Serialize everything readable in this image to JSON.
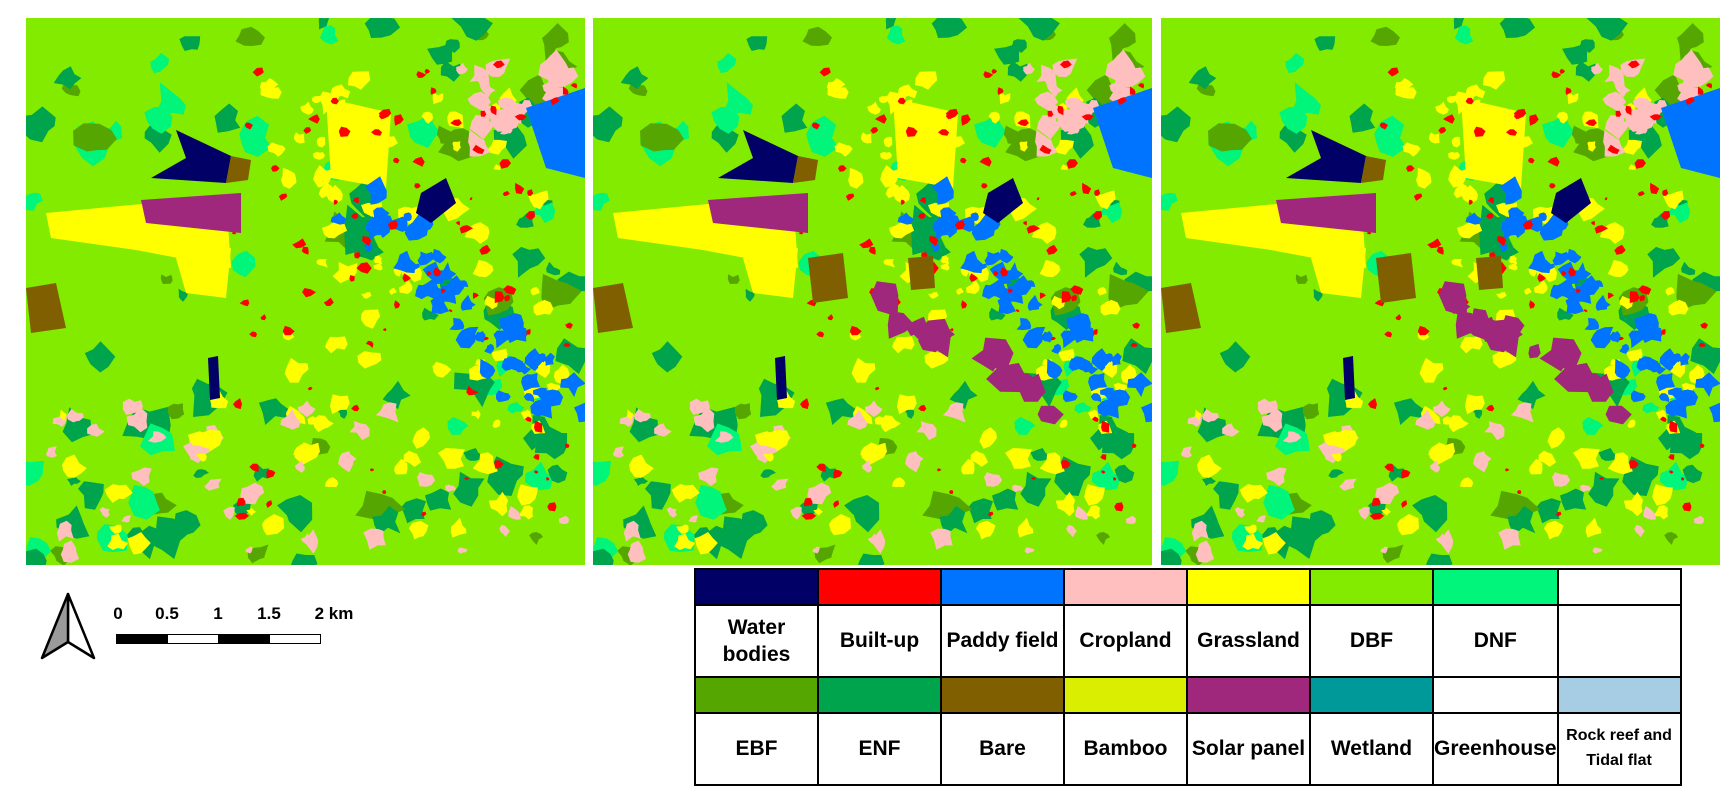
{
  "maps": [
    {
      "name": "classification-map-1"
    },
    {
      "name": "classification-map-2"
    },
    {
      "name": "classification-map-3"
    }
  ],
  "scale_bar": {
    "labels": [
      "0",
      "0.5",
      "1",
      "1.5",
      "2 km"
    ]
  },
  "legend": {
    "rows": [
      [
        {
          "label": "Water bodies",
          "color": "#000066"
        },
        {
          "label": "Built-up",
          "color": "#ff0000"
        },
        {
          "label": "Paddy field",
          "color": "#0073ff"
        },
        {
          "label": "Cropland",
          "color": "#ffbfbf"
        },
        {
          "label": "Grassland",
          "color": "#ffff00"
        },
        {
          "label": "DBF",
          "color": "#83eb00"
        },
        {
          "label": "DNF",
          "color": "#00f57a"
        },
        {
          "label": "",
          "color": "#ffffff"
        }
      ],
      [
        {
          "label": "EBF",
          "color": "#55a600"
        },
        {
          "label": "ENF",
          "color": "#00a44d"
        },
        {
          "label": "Bare",
          "color": "#7f5f00"
        },
        {
          "label": "Bamboo",
          "color": "#d9ee00"
        },
        {
          "label": "Solar panel",
          "color": "#a0287c"
        },
        {
          "label": "Wetland",
          "color": "#00999a"
        },
        {
          "label": "Greenhouse",
          "color": "#ffffff"
        },
        {
          "label": "Rock reef and Tidal flat",
          "color": "#a6cde3"
        }
      ]
    ]
  }
}
